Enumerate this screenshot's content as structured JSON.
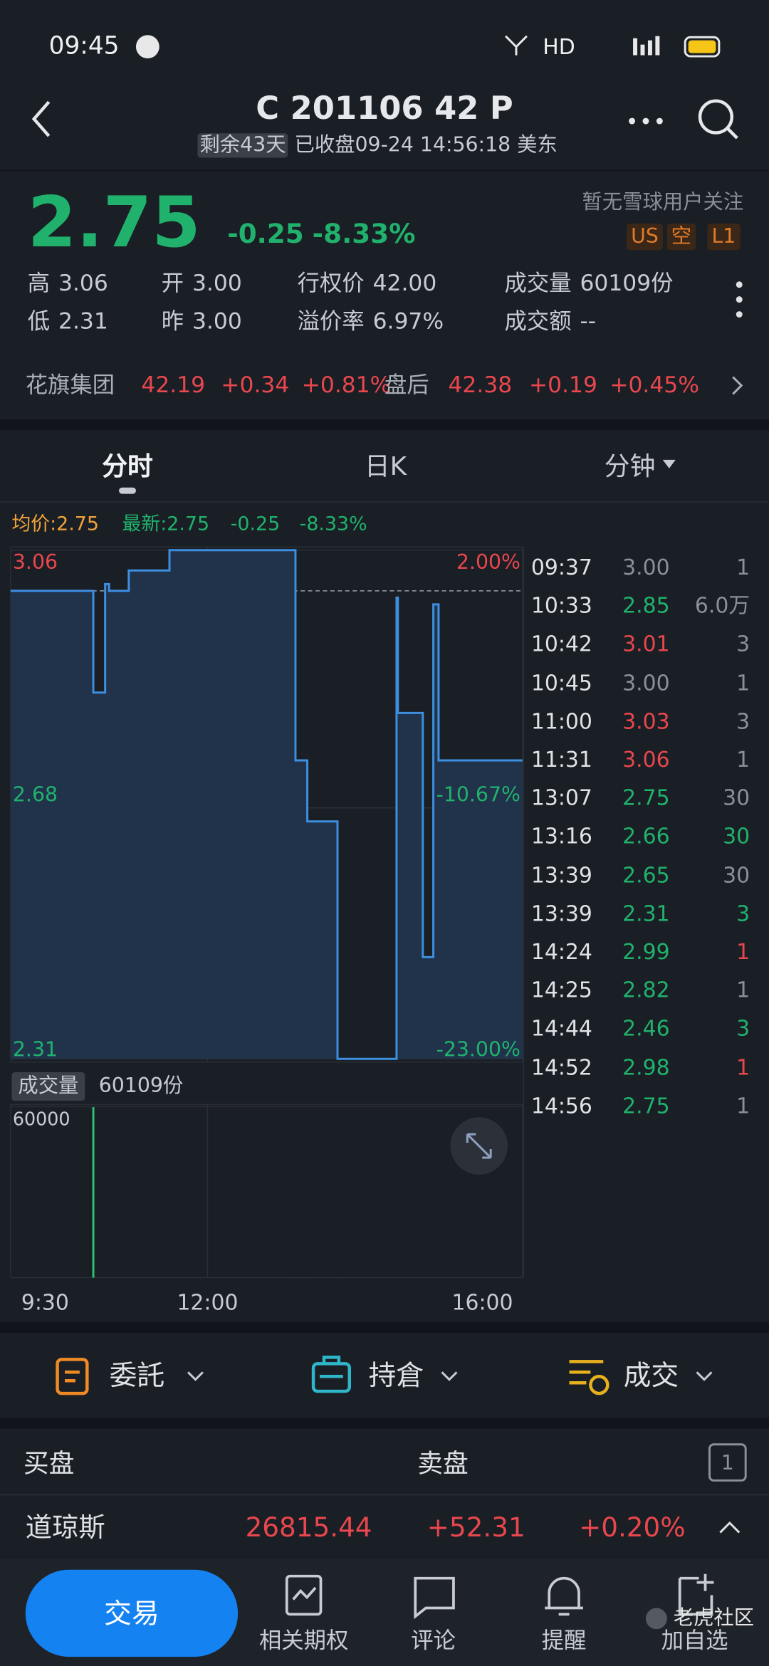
{
  "status_bar": {
    "time": "09:45",
    "network": "HD"
  },
  "header": {
    "title": "C 201106 42 P",
    "days_left": "剩余43天",
    "status": "已收盘09-24 14:56:18 美东"
  },
  "quote": {
    "price": "2.75",
    "change": "-0.25",
    "change_pct": "-8.33%",
    "followers": "暂无雪球用户关注",
    "tags": [
      "US",
      "空",
      "L1"
    ],
    "stats": [
      {
        "label": "高",
        "value": "3.06"
      },
      {
        "label": "开",
        "value": "3.00"
      },
      {
        "label": "行权价",
        "value": "42.00"
      },
      {
        "label": "成交量",
        "value": "60109份"
      },
      {
        "label": "低",
        "value": "2.31"
      },
      {
        "label": "昨",
        "value": "3.00"
      },
      {
        "label": "溢价率",
        "value": "6.97%"
      },
      {
        "label": "成交额",
        "value": "--"
      }
    ]
  },
  "underlying": {
    "name": "花旗集团",
    "price": "42.19",
    "change": "+0.34",
    "change_pct": "+0.81%",
    "after_label": "盘后",
    "after_price": "42.38",
    "after_change": "+0.19",
    "after_pct": "+0.45%"
  },
  "tabs": [
    "分时",
    "日K",
    "分钟"
  ],
  "summary": {
    "avg": "均价:2.75",
    "latest": "最新:2.75",
    "change": "-0.25",
    "change_pct": "-8.33%"
  },
  "chart_data": {
    "type": "line",
    "color": "#3d8fe0",
    "area_color": "#21324b",
    "xlim": [
      "9:30",
      "16:00"
    ],
    "xticks": [
      "9:30",
      "12:00",
      "16:00"
    ],
    "ylim": [
      2.31,
      3.06
    ],
    "yticks": [
      3.06,
      2.68,
      2.31
    ],
    "y2lim": [
      -23,
      2
    ],
    "y2ticks": [
      {
        "value": 2,
        "label": "2.00%"
      },
      {
        "value": -10.67,
        "label": "-10.67%"
      },
      {
        "value": -23,
        "label": "-23.00%"
      }
    ],
    "volume_label": "成交量",
    "volume_total": "60109份",
    "volume_ylim": [
      0,
      60000
    ],
    "volume_yticks": [
      60000
    ],
    "volume_bar_color": "#2fbf71"
  },
  "trades": [
    {
      "time": "09:37",
      "price": "3.00",
      "volume": 1,
      "volume_color": "#8b9098"
    },
    {
      "time": "10:33",
      "price": "2.85",
      "volume": 60000,
      "volume_label": "6.0万",
      "volume_color": "#8b9098"
    },
    {
      "time": "10:42",
      "price": "3.01",
      "volume": 3,
      "volume_color": "#8b9098"
    },
    {
      "time": "10:45",
      "price": "3.00",
      "volume": 1,
      "volume_color": "#8b9098"
    },
    {
      "time": "11:00",
      "price": "3.03",
      "volume": 3,
      "volume_color": "#8b9098"
    },
    {
      "time": "11:31",
      "price": "3.06",
      "volume": 1,
      "volume_color": "#8b9098"
    },
    {
      "time": "13:07",
      "price": "2.75",
      "volume": 30,
      "volume_color": "#8b9098"
    },
    {
      "time": "13:16",
      "price": "2.66",
      "volume": 30,
      "volume_color": "#20b26c"
    },
    {
      "time": "13:39",
      "price": "2.65",
      "volume": 30,
      "volume_color": "#8b9098"
    },
    {
      "time": "13:39",
      "price": "2.31",
      "volume": 3,
      "volume_color": "#20b26c"
    },
    {
      "time": "14:24",
      "price": "2.99",
      "volume": 1,
      "volume_color": "#e8474d"
    },
    {
      "time": "14:25",
      "price": "2.82",
      "volume": 1,
      "volume_color": "#8b9098"
    },
    {
      "time": "14:44",
      "price": "2.46",
      "volume": 3,
      "volume_color": "#20b26c"
    },
    {
      "time": "14:52",
      "price": "2.98",
      "volume": 1,
      "volume_color": "#e8474d"
    },
    {
      "time": "14:56",
      "price": "2.75",
      "volume": 1,
      "volume_color": "#8b9098"
    }
  ],
  "orders": [
    "委託",
    "持倉",
    "成交"
  ],
  "book": {
    "buy": "买盘",
    "sell": "卖盘",
    "level": "1"
  },
  "index": {
    "name": "道琼斯",
    "price": "26815.44",
    "change": "+52.31",
    "change_pct": "+0.20%"
  },
  "nav": [
    "交易",
    "相关期权",
    "评论",
    "提醒",
    "加自选"
  ],
  "watermark": "老虎社区"
}
